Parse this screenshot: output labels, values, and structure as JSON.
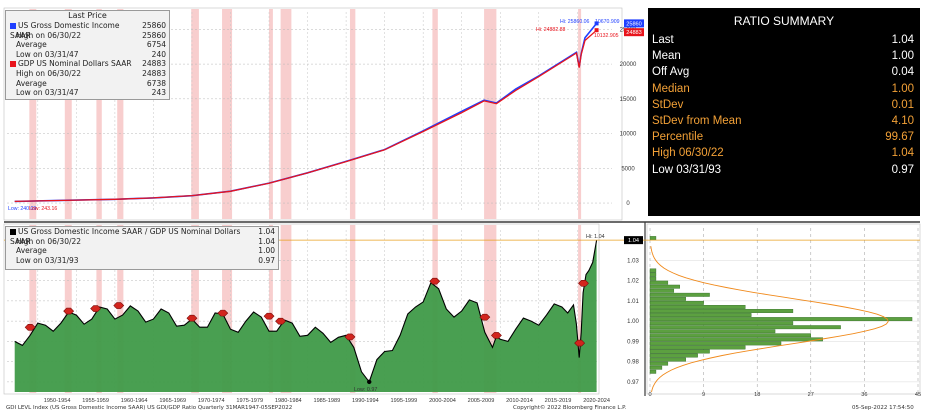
{
  "colors": {
    "blue": "#1f3fff",
    "red": "#e8141c",
    "green_fill": "#3f9a48",
    "recession": "#f7c6c6",
    "summary_bg": "#000000",
    "summary_highlight": "#f3a137"
  },
  "top_legend": {
    "title": "Last Price",
    "series1": {
      "name": "US Gross Domestic Income SAAR",
      "last": "25860",
      "rows": [
        {
          "label": "High on 06/30/22",
          "value": "25860"
        },
        {
          "label": "Average",
          "value": "6754"
        },
        {
          "label": "Low on 03/31/47",
          "value": "240"
        }
      ]
    },
    "series2": {
      "name": "GDP US Nominal Dollars SAAR",
      "last": "24883",
      "rows": [
        {
          "label": "High on 06/30/22",
          "value": "24883"
        },
        {
          "label": "Average",
          "value": "6738"
        },
        {
          "label": "Low on 03/31/47",
          "value": "243"
        }
      ]
    }
  },
  "bottom_legend": {
    "name": "US Gross Domestic Income SAAR / GDP US Nominal Dollars SAAR",
    "last": "1.04",
    "rows": [
      {
        "label": "High on 06/30/22",
        "value": "1.04"
      },
      {
        "label": "Average",
        "value": "1.00"
      },
      {
        "label": "Low on 03/31/93",
        "value": "0.97"
      }
    ]
  },
  "summary": {
    "title": "RATIO SUMMARY",
    "rows": [
      {
        "label": "Last",
        "value": "1.04",
        "highlight": false
      },
      {
        "label": "Mean",
        "value": "1.00",
        "highlight": false
      },
      {
        "label": "Off Avg",
        "value": "0.04",
        "highlight": false
      },
      {
        "label": "Median",
        "value": "1.00",
        "highlight": true
      },
      {
        "label": "StDev",
        "value": "0.01",
        "highlight": true
      },
      {
        "label": "StDev from Mean",
        "value": "4.10",
        "highlight": true
      },
      {
        "label": "Percentile",
        "value": "99.67",
        "highlight": true
      },
      {
        "label": "High 06/30/22",
        "value": "1.04",
        "highlight": true
      },
      {
        "label": "Low 03/31/93",
        "value": "0.97",
        "highlight": false
      }
    ]
  },
  "footer": {
    "left": "GDI LEVL Index (US Gross Domestic Income SAAR) US GDI/GDP Ratio  Quarterly 31MAR1947-05SEP2022",
    "center": "Copyright© 2022 Bloomberg Finance L.P.",
    "right": "05-Sep-2022 17:54:50"
  },
  "chart_data": [
    {
      "type": "line",
      "title": "",
      "x_tick_labels": [
        "1950-1954",
        "1955-1959",
        "1960-1964",
        "1965-1969",
        "1970-1974",
        "1975-1979",
        "1980-1984",
        "1985-1989",
        "1990-1994",
        "1995-1999",
        "2000-2004",
        "2005-2009",
        "2010-2014",
        "2015-2019",
        "2020-2024"
      ],
      "y_ticks": [
        0,
        5000,
        10000,
        15000,
        20000,
        25000
      ],
      "ylim": [
        -1000,
        27500
      ],
      "x_years": [
        1947,
        1955,
        1960,
        1965,
        1970,
        1975,
        1980,
        1985,
        1990,
        1995,
        2000,
        2005,
        2007.9,
        2009.5,
        2012,
        2015,
        2019.9,
        2020.25,
        2020.5,
        2021,
        2022.5
      ],
      "series": [
        {
          "name": "US Gross Domestic Income SAAR",
          "values": [
            240,
            420,
            540,
            740,
            1060,
            1700,
            2870,
            4350,
            6000,
            7700,
            10400,
            13200,
            14800,
            14400,
            16400,
            18300,
            21700,
            19600,
            21500,
            23800,
            25860
          ]
        },
        {
          "name": "GDP US Nominal Dollars SAAR",
          "values": [
            243,
            425,
            545,
            745,
            1070,
            1690,
            2860,
            4340,
            5960,
            7660,
            10300,
            13000,
            14700,
            14300,
            16200,
            18200,
            21600,
            19500,
            21400,
            23400,
            24883
          ]
        }
      ],
      "annotations": [
        {
          "text": "Low: 240.09",
          "series": "US Gross Domestic Income SAAR"
        },
        {
          "text": "Low: 243.16",
          "series": "GDP US Nominal Dollars SAAR"
        },
        {
          "text": "Hi: 25860.06",
          "series": "US Gross Domestic Income SAAR"
        },
        {
          "text": "Hi: 24882.88",
          "series": "GDP US Nominal Dollars SAAR"
        },
        {
          "text": "10670.909",
          "series": "US Gross Domestic Income SAAR"
        },
        {
          "text": "10132.905",
          "series": "GDP US Nominal Dollars SAAR"
        }
      ],
      "last_value_labels": [
        "25860",
        "24883"
      ],
      "recessions": [
        [
          1948.9,
          1949.8
        ],
        [
          1953.5,
          1954.4
        ],
        [
          1957.6,
          1958.3
        ],
        [
          1960.3,
          1961.1
        ],
        [
          1969.9,
          1970.9
        ],
        [
          1973.9,
          1975.2
        ],
        [
          1980.0,
          1980.5
        ],
        [
          1981.5,
          1982.9
        ],
        [
          1990.5,
          1991.2
        ],
        [
          2001.2,
          2001.9
        ],
        [
          2007.9,
          2009.5
        ],
        [
          2020.1,
          2020.4
        ]
      ]
    },
    {
      "type": "area",
      "title": "",
      "series_name": "US Gross Domestic Income SAAR / GDP US Nominal Dollars SAAR",
      "y_ticks": [
        0.97,
        0.98,
        0.99,
        1.0,
        1.01,
        1.02,
        1.03
      ],
      "ylim": [
        0.965,
        1.045
      ],
      "x": [
        1947,
        1949,
        1951,
        1953,
        1955,
        1957,
        1959,
        1961,
        1963,
        1965,
        1967,
        1969,
        1971,
        1973,
        1975,
        1977,
        1979,
        1981,
        1983,
        1985,
        1987,
        1989,
        1991,
        1993,
        1995,
        1997,
        1999,
        2001,
        2003,
        2005,
        2007,
        2009,
        2010,
        2012,
        2014,
        2016,
        2018,
        2019.5,
        2020.25,
        2020.75,
        2021.5,
        2022.5
      ],
      "values": [
        0.99,
        0.993,
        0.998,
        0.999,
        1.003,
        1.001,
        1.006,
        1.003,
        1.005,
        1.001,
        1.004,
        0.998,
        0.997,
        1.004,
        0.996,
        1.0,
        1.002,
        0.995,
        0.999,
        0.993,
        0.994,
        0.992,
        0.987,
        0.97,
        0.985,
        0.993,
        1.007,
        1.019,
        1.006,
        1.005,
        1.009,
        0.987,
        0.991,
        0.996,
        1.0,
        1.003,
        1.007,
        1.008,
        0.982,
        1.014,
        1.025,
        1.04
      ],
      "hi_label": "Hi: 1.04",
      "low_label": "Low: 0.97",
      "last_label": "1.04",
      "marker_years": [
        1949,
        1954,
        1957.5,
        1960.5,
        1970,
        1974,
        1980,
        1981.5,
        1990.5,
        2001.5,
        2008,
        2009.5,
        2020.3,
        2020.8
      ]
    },
    {
      "type": "bar",
      "title": "",
      "orientation": "horizontal",
      "x_ticks": [
        0,
        9,
        18,
        27,
        36,
        45
      ],
      "xlim": [
        0,
        45
      ],
      "y_ticks": [
        0.97,
        0.98,
        0.99,
        1.0,
        1.01,
        1.02,
        1.03
      ],
      "bins": [
        0.975,
        0.977,
        0.979,
        0.981,
        0.983,
        0.985,
        0.987,
        0.989,
        0.991,
        0.993,
        0.995,
        0.997,
        0.999,
        1.001,
        1.003,
        1.005,
        1.007,
        1.009,
        1.011,
        1.013,
        1.015,
        1.017,
        1.019,
        1.021,
        1.023,
        1.025,
        1.027,
        1.029,
        1.031,
        1.033,
        1.035,
        1.037,
        1.039,
        1.041
      ],
      "values": [
        1,
        2,
        3,
        6,
        8,
        10,
        16,
        22,
        29,
        27,
        21,
        32,
        24,
        44,
        17,
        24,
        16,
        9,
        6,
        10,
        4,
        5,
        3,
        1,
        1,
        1,
        0,
        0,
        0,
        0,
        0,
        0,
        0,
        1
      ]
    }
  ]
}
